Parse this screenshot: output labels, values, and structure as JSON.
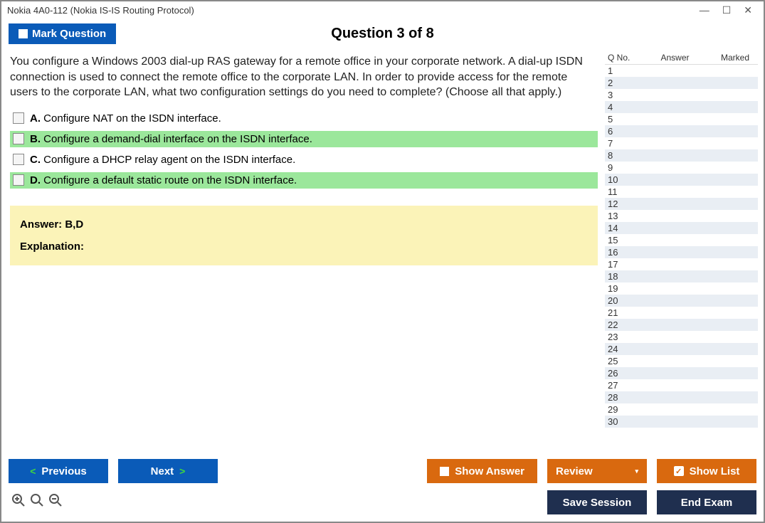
{
  "window": {
    "title": "Nokia 4A0-112 (Nokia IS-IS Routing Protocol)"
  },
  "header": {
    "mark_label": "Mark Question",
    "question_title": "Question 3 of 8"
  },
  "question": {
    "text": "You configure a Windows 2003 dial-up RAS gateway for a remote office in your corporate network. A dial-up ISDN connection is used to connect the remote office to the corporate LAN. In order to provide access for the remote users to the corporate LAN, what two configuration settings do you need to complete? (Choose all that apply.)",
    "options": [
      {
        "letter": "A.",
        "text": "Configure NAT on the ISDN interface.",
        "correct": false
      },
      {
        "letter": "B.",
        "text": "Configure a demand-dial interface on the ISDN interface.",
        "correct": true
      },
      {
        "letter": "C.",
        "text": "Configure a DHCP relay agent on the ISDN interface.",
        "correct": false
      },
      {
        "letter": "D.",
        "text": "Configure a default static route on the ISDN interface.",
        "correct": true
      }
    ],
    "answer_label": "Answer: B,D",
    "explanation_label": "Explanation:"
  },
  "sidepanel": {
    "col_qno": "Q No.",
    "col_answer": "Answer",
    "col_marked": "Marked",
    "total_rows": 30
  },
  "footer": {
    "previous": "Previous",
    "next": "Next",
    "show_answer": "Show Answer",
    "review": "Review",
    "show_list": "Show List",
    "save_session": "Save Session",
    "end_exam": "End Exam"
  },
  "colors": {
    "blue": "#0a5bb8",
    "orange": "#d9690f",
    "dark": "#1f2f4f",
    "correct_bg": "#9be79b",
    "answer_bg": "#fbf3b8",
    "even_row": "#e9eef4"
  }
}
